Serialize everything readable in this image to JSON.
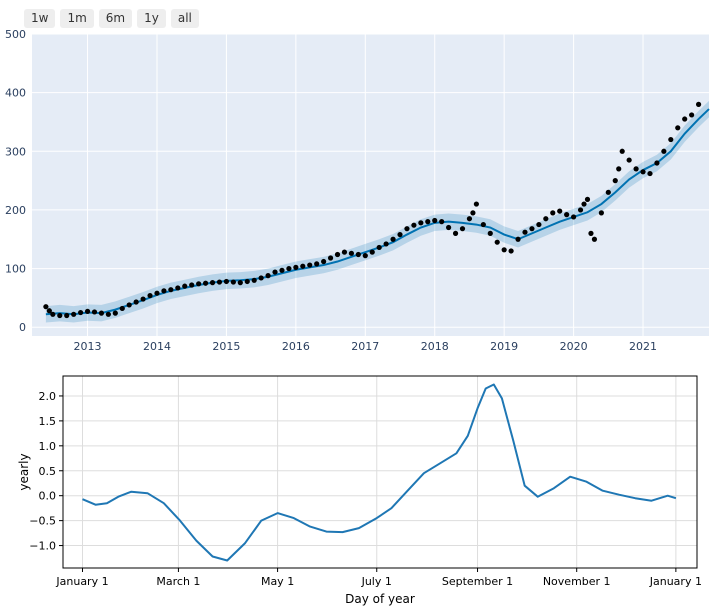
{
  "range_selector": {
    "buttons": [
      {
        "label": "1w"
      },
      {
        "label": "1m"
      },
      {
        "label": "6m"
      },
      {
        "label": "1y"
      },
      {
        "label": "all"
      }
    ]
  },
  "colors": {
    "plot_bg": "#e5ecf6",
    "forecast": "#0072b2",
    "band": "rgba(0,114,178,0.2)",
    "points": "#000000",
    "seasonal_line": "#1f77b4"
  },
  "chart_data": [
    {
      "type": "line",
      "title": "",
      "xlabel": "",
      "ylabel": "",
      "x_ticks": [
        "2013",
        "2014",
        "2015",
        "2016",
        "2017",
        "2018",
        "2019",
        "2020",
        "2021"
      ],
      "y_ticks": [
        "0",
        "100",
        "200",
        "300",
        "400",
        "500"
      ],
      "ylim": [
        -15,
        500
      ],
      "xlim": [
        2012.2,
        2021.95
      ],
      "grid": true,
      "series": [
        {
          "kind": "forecast-with-band",
          "x": [
            2012.4,
            2012.6,
            2012.8,
            2013.0,
            2013.2,
            2013.4,
            2013.6,
            2013.8,
            2014.0,
            2014.2,
            2014.4,
            2014.6,
            2014.8,
            2015.0,
            2015.2,
            2015.4,
            2015.6,
            2015.8,
            2016.0,
            2016.2,
            2016.4,
            2016.6,
            2016.8,
            2017.0,
            2017.2,
            2017.4,
            2017.6,
            2017.8,
            2018.0,
            2018.2,
            2018.4,
            2018.6,
            2018.8,
            2019.0,
            2019.2,
            2019.4,
            2019.6,
            2019.8,
            2020.0,
            2020.2,
            2020.4,
            2020.6,
            2020.8,
            2021.0,
            2021.2,
            2021.4,
            2021.6,
            2021.8,
            2021.95
          ],
          "yhat": [
            22,
            24,
            22,
            25,
            24,
            30,
            38,
            46,
            55,
            62,
            67,
            72,
            76,
            79,
            80,
            82,
            86,
            92,
            98,
            102,
            106,
            112,
            120,
            128,
            136,
            145,
            158,
            170,
            178,
            180,
            178,
            175,
            170,
            158,
            150,
            160,
            170,
            180,
            188,
            196,
            210,
            230,
            252,
            268,
            280,
            300,
            330,
            355,
            372
          ],
          "band_halfwidth": 14
        },
        {
          "kind": "observed-points",
          "x": [
            2012.4,
            2012.45,
            2012.5,
            2012.6,
            2012.7,
            2012.8,
            2012.9,
            2013.0,
            2013.1,
            2013.2,
            2013.3,
            2013.4,
            2013.5,
            2013.6,
            2013.7,
            2013.8,
            2013.9,
            2014.0,
            2014.1,
            2014.2,
            2014.3,
            2014.4,
            2014.5,
            2014.6,
            2014.7,
            2014.8,
            2014.9,
            2015.0,
            2015.1,
            2015.2,
            2015.3,
            2015.4,
            2015.5,
            2015.6,
            2015.7,
            2015.8,
            2015.9,
            2016.0,
            2016.1,
            2016.2,
            2016.3,
            2016.4,
            2016.5,
            2016.6,
            2016.7,
            2016.8,
            2016.9,
            2017.0,
            2017.1,
            2017.2,
            2017.3,
            2017.4,
            2017.5,
            2017.6,
            2017.7,
            2017.8,
            2017.9,
            2018.0,
            2018.1,
            2018.2,
            2018.3,
            2018.4,
            2018.5,
            2018.55,
            2018.6,
            2018.7,
            2018.8,
            2018.9,
            2019.0,
            2019.1,
            2019.2,
            2019.3,
            2019.4,
            2019.5,
            2019.6,
            2019.7,
            2019.8,
            2019.9,
            2020.0,
            2020.1,
            2020.15,
            2020.2,
            2020.25,
            2020.3,
            2020.4,
            2020.5,
            2020.6,
            2020.65,
            2020.7,
            2020.8,
            2020.9,
            2021.0,
            2021.1,
            2021.2,
            2021.3,
            2021.4,
            2021.5,
            2021.6,
            2021.7,
            2021.8
          ],
          "y": [
            35,
            28,
            22,
            20,
            20,
            22,
            25,
            27,
            26,
            24,
            22,
            24,
            32,
            38,
            43,
            48,
            54,
            58,
            62,
            64,
            67,
            70,
            72,
            74,
            75,
            76,
            77,
            78,
            77,
            76,
            78,
            80,
            84,
            88,
            94,
            97,
            100,
            102,
            104,
            106,
            108,
            112,
            118,
            124,
            128,
            126,
            124,
            122,
            128,
            136,
            142,
            150,
            158,
            168,
            174,
            178,
            180,
            182,
            180,
            170,
            160,
            168,
            185,
            195,
            210,
            175,
            160,
            145,
            132,
            130,
            150,
            162,
            168,
            175,
            185,
            195,
            198,
            192,
            188,
            200,
            210,
            218,
            160,
            150,
            195,
            230,
            250,
            270,
            300,
            285,
            270,
            265,
            262,
            280,
            300,
            320,
            340,
            355,
            362,
            380
          ]
        }
      ]
    },
    {
      "type": "line",
      "title": "",
      "xlabel": "Day of year",
      "ylabel": "yearly",
      "x_ticks": [
        "January 1",
        "March 1",
        "May 1",
        "July 1",
        "September 1",
        "November 1",
        "January 1"
      ],
      "y_ticks": [
        "−1.0",
        "−0.5",
        "0.0",
        "0.5",
        "1.0",
        "1.5",
        "2.0"
      ],
      "ylim": [
        -1.45,
        2.4
      ],
      "xlim": [
        -12,
        378
      ],
      "grid": true,
      "series": [
        {
          "x": [
            0,
            8,
            15,
            22,
            30,
            40,
            50,
            60,
            70,
            80,
            89,
            100,
            110,
            120,
            130,
            140,
            150,
            160,
            170,
            181,
            190,
            200,
            210,
            220,
            230,
            237,
            243,
            248,
            253,
            258,
            265,
            272,
            280,
            290,
            300,
            310,
            320,
            330,
            340,
            350,
            360,
            365
          ],
          "y": [
            -0.07,
            -0.18,
            -0.15,
            -0.02,
            0.08,
            0.05,
            -0.15,
            -0.5,
            -0.9,
            -1.22,
            -1.3,
            -0.95,
            -0.5,
            -0.35,
            -0.45,
            -0.62,
            -0.72,
            -0.73,
            -0.65,
            -0.45,
            -0.25,
            0.1,
            0.45,
            0.65,
            0.85,
            1.2,
            1.75,
            2.15,
            2.23,
            1.95,
            1.1,
            0.2,
            -0.02,
            0.15,
            0.38,
            0.28,
            0.1,
            0.02,
            -0.05,
            -0.1,
            0.0,
            -0.05
          ]
        }
      ]
    }
  ]
}
